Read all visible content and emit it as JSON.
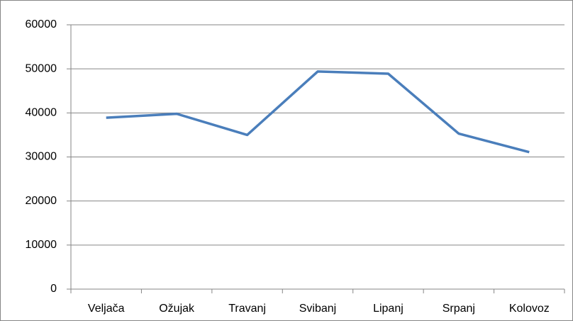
{
  "chart_data": {
    "type": "line",
    "categories": [
      "Veljača",
      "Ožujak",
      "Travanj",
      "Svibanj",
      "Lipanj",
      "Srpanj",
      "Kolovoz"
    ],
    "series": [
      {
        "color": "#4a7ebb",
        "values": [
          38900,
          39800,
          35000,
          49400,
          48900,
          35300,
          31100
        ]
      }
    ],
    "ylim": [
      0,
      60000
    ],
    "yticks": [
      0,
      10000,
      20000,
      30000,
      40000,
      50000,
      60000
    ],
    "grid": true
  }
}
